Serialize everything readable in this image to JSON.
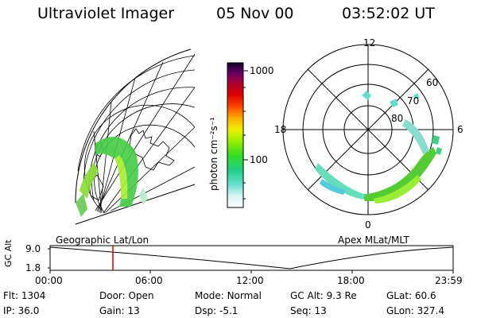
{
  "header": {
    "instrument": "Ultraviolet Imager",
    "date": "05 Nov 00",
    "time": "03:52:02 UT"
  },
  "colorbar": {
    "label": "photon cm⁻²s⁻¹",
    "ticks": [
      "1000",
      "100"
    ]
  },
  "polar_plot": {
    "mlt_labels": {
      "top": "12",
      "left": "18",
      "right": "6",
      "bottom": "0"
    },
    "lat_labels": [
      "60",
      "70",
      "80"
    ]
  },
  "map_labels": {
    "left": "Geographic Lat/Lon",
    "right": "Apex MLat/MLT"
  },
  "altitude_strip": {
    "axis_title": "GC Alt",
    "y_ticks": [
      "9.0",
      "1.8"
    ],
    "time_ticks": [
      "00:00",
      "06:00",
      "12:00",
      "18:00",
      "23:59"
    ],
    "marker_time": "03:52"
  },
  "status": {
    "row1": [
      {
        "label": "Flt:",
        "value": "1304"
      },
      {
        "label": "Door:",
        "value": "Open"
      },
      {
        "label": "Mode:",
        "value": "Normal"
      },
      {
        "label": "GC Alt:",
        "value": "9.3 Re"
      },
      {
        "label": "GLat:",
        "value": "60.6"
      }
    ],
    "row2": [
      {
        "label": "IP:",
        "value": "36.0"
      },
      {
        "label": "Gain:",
        "value": "13"
      },
      {
        "label": "Dsp:",
        "value": "-5.1"
      },
      {
        "label": "Seq:",
        "value": "13"
      },
      {
        "label": "GLon:",
        "value": "327.4"
      }
    ]
  },
  "colors": {
    "aurora_bright": "#33cc33",
    "aurora_mid": "#88ee22",
    "aurora_faint": "#44ddcc",
    "marker": "#dd0000"
  }
}
